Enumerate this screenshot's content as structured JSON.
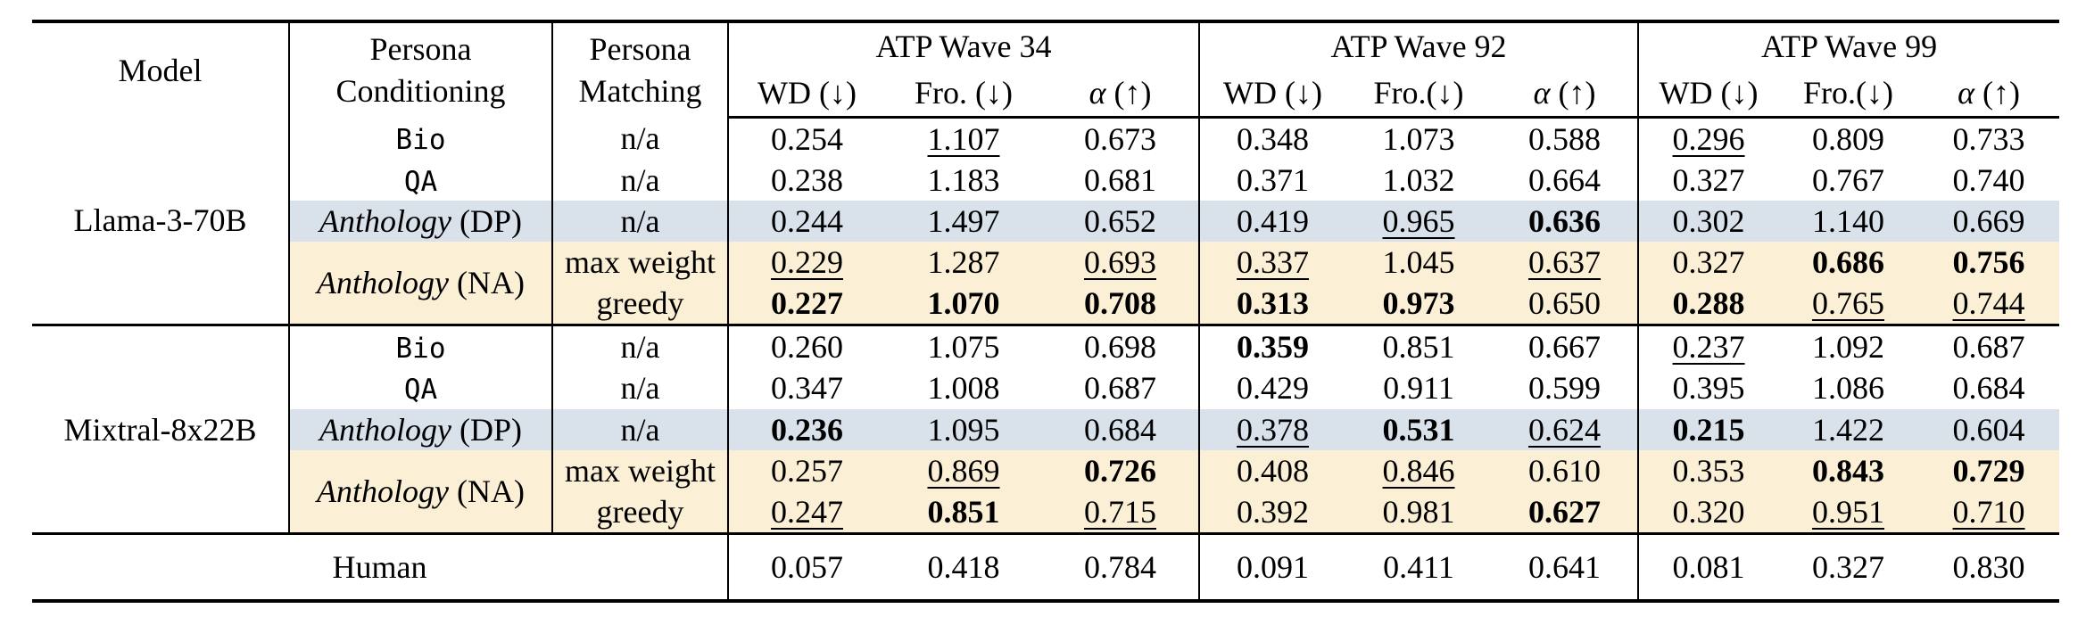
{
  "colors": {
    "highlight_blue": "#d9e2eb",
    "highlight_cream": "#fbf0d5",
    "rule": "#000000"
  },
  "table": {
    "header": {
      "model": "Model",
      "persona_conditioning_l1": "Persona",
      "persona_conditioning_l2": "Conditioning",
      "persona_matching_l1": "Persona",
      "persona_matching_l2": "Matching",
      "groups": [
        {
          "title": "ATP Wave 34",
          "metrics": [
            "WD (↓)",
            "Fro. (↓)",
            "α (↑)"
          ]
        },
        {
          "title": "ATP Wave 92",
          "metrics": [
            "WD (↓)",
            "Fro.(↓)",
            "α (↑)"
          ]
        },
        {
          "title": "ATP Wave 99",
          "metrics": [
            "WD (↓)",
            "Fro.(↓)",
            "α (↑)"
          ]
        }
      ]
    },
    "blocks": [
      {
        "model": "Llama-3-70B",
        "rows": [
          {
            "cond": {
              "text": "Bio",
              "mono": true
            },
            "match": "n/a",
            "highlight": null,
            "cells": [
              {
                "v": "0.254"
              },
              {
                "v": "1.107",
                "u": true
              },
              {
                "v": "0.673"
              },
              {
                "v": "0.348"
              },
              {
                "v": "1.073"
              },
              {
                "v": "0.588"
              },
              {
                "v": "0.296",
                "u": true
              },
              {
                "v": "0.809"
              },
              {
                "v": "0.733"
              }
            ]
          },
          {
            "cond": {
              "text": "QA",
              "mono": true
            },
            "match": "n/a",
            "highlight": null,
            "cells": [
              {
                "v": "0.238"
              },
              {
                "v": "1.183"
              },
              {
                "v": "0.681"
              },
              {
                "v": "0.371"
              },
              {
                "v": "1.032"
              },
              {
                "v": "0.664"
              },
              {
                "v": "0.327"
              },
              {
                "v": "0.767"
              },
              {
                "v": "0.740"
              }
            ]
          },
          {
            "cond": {
              "italic": "Anthology",
              "rest": " (DP)"
            },
            "match": "n/a",
            "highlight": "blue",
            "cells": [
              {
                "v": "0.244"
              },
              {
                "v": "1.497"
              },
              {
                "v": "0.652"
              },
              {
                "v": "0.419"
              },
              {
                "v": "0.965",
                "u": true
              },
              {
                "v": "0.636",
                "b": true
              },
              {
                "v": "0.302"
              },
              {
                "v": "1.140"
              },
              {
                "v": "0.669"
              }
            ]
          },
          {
            "cond": {
              "italic": "Anthology",
              "rest": " (NA)",
              "rowspan": 2
            },
            "match": "max weight",
            "highlight": "cream",
            "cells": [
              {
                "v": "0.229",
                "u": true
              },
              {
                "v": "1.287"
              },
              {
                "v": "0.693",
                "u": true
              },
              {
                "v": "0.337",
                "u": true
              },
              {
                "v": "1.045"
              },
              {
                "v": "0.637",
                "u": true
              },
              {
                "v": "0.327"
              },
              {
                "v": "0.686",
                "b": true
              },
              {
                "v": "0.756",
                "b": true
              }
            ]
          },
          {
            "cond": null,
            "match": "greedy",
            "highlight": "cream",
            "cells": [
              {
                "v": "0.227",
                "b": true
              },
              {
                "v": "1.070",
                "b": true
              },
              {
                "v": "0.708",
                "b": true
              },
              {
                "v": "0.313",
                "b": true
              },
              {
                "v": "0.973",
                "b": true
              },
              {
                "v": "0.650"
              },
              {
                "v": "0.288",
                "b": true
              },
              {
                "v": "0.765",
                "u": true
              },
              {
                "v": "0.744",
                "u": true
              }
            ]
          }
        ]
      },
      {
        "model": "Mixtral-8x22B",
        "rows": [
          {
            "cond": {
              "text": "Bio",
              "mono": true
            },
            "match": "n/a",
            "highlight": null,
            "cells": [
              {
                "v": "0.260"
              },
              {
                "v": "1.075"
              },
              {
                "v": "0.698"
              },
              {
                "v": "0.359",
                "b": true
              },
              {
                "v": "0.851"
              },
              {
                "v": "0.667"
              },
              {
                "v": "0.237",
                "u": true
              },
              {
                "v": "1.092"
              },
              {
                "v": "0.687"
              }
            ]
          },
          {
            "cond": {
              "text": "QA",
              "mono": true
            },
            "match": "n/a",
            "highlight": null,
            "cells": [
              {
                "v": "0.347"
              },
              {
                "v": "1.008"
              },
              {
                "v": "0.687"
              },
              {
                "v": "0.429"
              },
              {
                "v": "0.911"
              },
              {
                "v": "0.599"
              },
              {
                "v": "0.395"
              },
              {
                "v": "1.086"
              },
              {
                "v": "0.684"
              }
            ]
          },
          {
            "cond": {
              "italic": "Anthology",
              "rest": " (DP)"
            },
            "match": "n/a",
            "highlight": "blue",
            "cells": [
              {
                "v": "0.236",
                "b": true
              },
              {
                "v": "1.095"
              },
              {
                "v": "0.684"
              },
              {
                "v": "0.378",
                "u": true
              },
              {
                "v": "0.531",
                "b": true
              },
              {
                "v": "0.624",
                "u": true
              },
              {
                "v": "0.215",
                "b": true
              },
              {
                "v": "1.422"
              },
              {
                "v": "0.604"
              }
            ]
          },
          {
            "cond": {
              "italic": "Anthology",
              "rest": " (NA)",
              "rowspan": 2
            },
            "match": "max weight",
            "highlight": "cream",
            "cells": [
              {
                "v": "0.257"
              },
              {
                "v": "0.869",
                "u": true
              },
              {
                "v": "0.726",
                "b": true
              },
              {
                "v": "0.408"
              },
              {
                "v": "0.846",
                "u": true
              },
              {
                "v": "0.610"
              },
              {
                "v": "0.353"
              },
              {
                "v": "0.843",
                "b": true
              },
              {
                "v": "0.729",
                "b": true
              }
            ]
          },
          {
            "cond": null,
            "match": "greedy",
            "highlight": "cream",
            "cells": [
              {
                "v": "0.247",
                "u": true
              },
              {
                "v": "0.851",
                "b": true
              },
              {
                "v": "0.715",
                "u": true
              },
              {
                "v": "0.392"
              },
              {
                "v": "0.981"
              },
              {
                "v": "0.627",
                "b": true
              },
              {
                "v": "0.320"
              },
              {
                "v": "0.951",
                "u": true
              },
              {
                "v": "0.710",
                "u": true
              }
            ]
          }
        ]
      }
    ],
    "human": {
      "label": "Human",
      "cells": [
        {
          "v": "0.057"
        },
        {
          "v": "0.418"
        },
        {
          "v": "0.784"
        },
        {
          "v": "0.091"
        },
        {
          "v": "0.411"
        },
        {
          "v": "0.641"
        },
        {
          "v": "0.081"
        },
        {
          "v": "0.327"
        },
        {
          "v": "0.830"
        }
      ]
    }
  }
}
